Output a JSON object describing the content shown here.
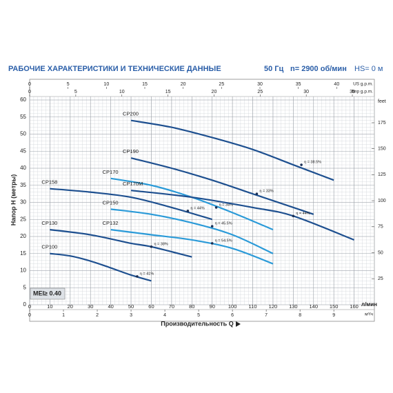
{
  "chart_data": {
    "type": "line",
    "title": "РАБОЧИЕ ХАРАКТЕРИСТИКИ И ТЕХНИЧЕСКИЕ ДАННЫЕ",
    "title_right": [
      "50 Гц",
      "n= 2900 об/мин",
      "HS= 0 м"
    ],
    "xlabel": "Производительность Q",
    "x_unit": "л/мин",
    "ylabel": "Напор Н (метры)",
    "y2label": "feet",
    "annotation": "MEI≥ 0.40",
    "xlim": [
      0,
      170
    ],
    "xticks": [
      0,
      10,
      20,
      30,
      40,
      50,
      60,
      70,
      80,
      90,
      100,
      110,
      120,
      130,
      140,
      150,
      160
    ],
    "ylim": [
      0,
      60
    ],
    "yticks": [
      0,
      5,
      10,
      15,
      20,
      25,
      30,
      35,
      40,
      45,
      50,
      55,
      60
    ],
    "y2lim": [
      0,
      196.85
    ],
    "y2ticks": [
      25,
      50,
      75,
      100,
      125,
      150,
      175
    ],
    "top_axes": [
      {
        "label": "US g.p.m.",
        "lim": [
          0,
          44.91
        ],
        "ticks": [
          0,
          5,
          10,
          15,
          20,
          25,
          30,
          35,
          40
        ]
      },
      {
        "label": "Imp g.p.m.",
        "lim": [
          0,
          37.39
        ],
        "ticks": [
          0,
          5,
          10,
          15,
          20,
          25,
          30,
          35
        ]
      }
    ],
    "bottom_axis": {
      "label": "м³/ч",
      "lim": [
        0,
        10.2
      ],
      "ticks": [
        0,
        1,
        2,
        3,
        4,
        5,
        6,
        7,
        8,
        9
      ]
    },
    "grid": true,
    "series": [
      {
        "name": "CP200",
        "color": "#1d4f8f",
        "x": [
          50,
          70,
          90,
          110,
          130,
          150
        ],
        "values": [
          54,
          52,
          49,
          45.5,
          41,
          36.5
        ],
        "eff": {
          "x": 134,
          "y": 41,
          "label": "η = 38.5%"
        }
      },
      {
        "name": "CP190",
        "color": "#1d4f8f",
        "x": [
          50,
          70,
          90,
          110,
          125,
          140
        ],
        "values": [
          43,
          40,
          36.5,
          32.5,
          29.5,
          26.5
        ],
        "eff": {
          "x": 112,
          "y": 32.5,
          "label": "η = 33%"
        }
      },
      {
        "name": "CP170",
        "color": "#2a9ad8",
        "x": [
          40,
          60,
          80,
          100,
          120
        ],
        "values": [
          37,
          35,
          31.5,
          27,
          22
        ],
        "eff": {
          "x": 92,
          "y": 28.5,
          "label": "η = 34%"
        }
      },
      {
        "name": "CP170M",
        "color": "#1d4f8f",
        "x": [
          50,
          80,
          110,
          130,
          160
        ],
        "values": [
          33.5,
          31.5,
          28.5,
          26,
          19
        ],
        "eff": {
          "x": 130,
          "y": 26,
          "label": "η = 44%"
        }
      },
      {
        "name": "CP158",
        "color": "#1d4f8f",
        "x": [
          10,
          30,
          50,
          70,
          90
        ],
        "values": [
          34,
          33,
          31.5,
          28.5,
          25
        ],
        "eff": {
          "x": 78,
          "y": 27.5,
          "label": "η = 44%"
        }
      },
      {
        "name": "CP150",
        "color": "#2a9ad8",
        "x": [
          40,
          60,
          80,
          100,
          120
        ],
        "values": [
          28,
          26.5,
          24,
          20.5,
          15
        ],
        "eff": {
          "x": 90,
          "y": 23,
          "label": "η = 45.5%"
        }
      },
      {
        "name": "CP132",
        "color": "#2a9ad8",
        "x": [
          40,
          60,
          80,
          100,
          120
        ],
        "values": [
          22,
          20.5,
          19,
          16.5,
          12
        ],
        "eff": {
          "x": 90,
          "y": 18,
          "label": "η = 54.5%"
        }
      },
      {
        "name": "CP130",
        "color": "#1d4f8f",
        "x": [
          10,
          30,
          50,
          60,
          80
        ],
        "values": [
          22,
          20.5,
          18,
          17,
          14
        ],
        "eff": {
          "x": 60,
          "y": 17,
          "label": "η = 38%"
        }
      },
      {
        "name": "CP100",
        "color": "#1d4f8f",
        "x": [
          10,
          20,
          30,
          40,
          50,
          60
        ],
        "values": [
          15,
          14.3,
          12.8,
          10.8,
          8.7,
          7
        ],
        "eff": {
          "x": 53,
          "y": 8.3,
          "label": "η = 41%"
        }
      }
    ]
  }
}
